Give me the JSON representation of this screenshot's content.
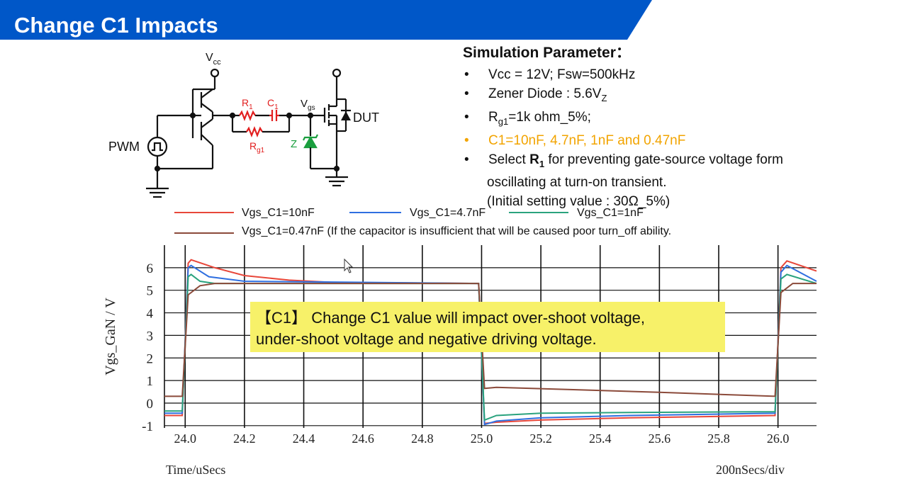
{
  "slide": {
    "title": "Change C1 Impacts"
  },
  "params": {
    "title": "Simulation Parameter",
    "colon": "：",
    "items": [
      "Vcc = 12V; Fsw=500kHz",
      "Zener Diode : 5.6V",
      "=1k ohm_5%;",
      "C1=10nF, 4.7nF, 1nF and 0.47nF",
      "Select",
      "for preventing gate-source voltage form",
      "oscillating at turn-on transient.",
      "(Initial setting value : 30Ω_5%)"
    ],
    "sub_z": "Z",
    "rg1_main": "R",
    "rg1_sub": "g1",
    "r1_main": "R",
    "r1_sub": "1"
  },
  "circuit": {
    "vcc_main": "V",
    "vcc_sub": "cc",
    "pwm": "PWM",
    "r1_main": "R",
    "r1_sub": "1",
    "c1_main": "C",
    "c1_sub": "1",
    "vgs_main": "V",
    "vgs_sub": "gs",
    "rg1_main": "R",
    "rg1_sub": "g1",
    "zener": "Z",
    "dut": "DUT"
  },
  "callout": {
    "line1": "【C1】 Change C1 value will impact over-shoot voltage,",
    "line2": "under-shoot voltage and negative driving voltage."
  },
  "colors": {
    "title_bar": "#0057c8",
    "c10": "#e8473a",
    "c47": "#2f6fe0",
    "c1": "#2aa37e",
    "c047": "#8b4a3a",
    "orange": "#f2a400",
    "red_component": "#e21e1e",
    "green_zener": "#1a9e3e"
  },
  "chart_data": {
    "type": "line",
    "ylabel": "Vgs_GaN / V",
    "xlabel": "Time/uSecs",
    "div_label": "200nSecs/div",
    "x_ticks": [
      "24.0",
      "24.2",
      "24.4",
      "24.6",
      "24.8",
      "25.0",
      "25.2",
      "25.4",
      "25.6",
      "25.8",
      "26.0"
    ],
    "y_ticks": [
      "-1",
      "0",
      "1",
      "2",
      "3",
      "4",
      "5",
      "6"
    ],
    "xlim": [
      23.93,
      26.13
    ],
    "ylim": [
      -1.1,
      7.0
    ],
    "legend": [
      {
        "name": "Vgs_C1=10nF",
        "key": "c10"
      },
      {
        "name": "Vgs_C1=4.7nF",
        "key": "c47"
      },
      {
        "name": "Vgs_C1=1nF",
        "key": "c1"
      },
      {
        "name": "Vgs_C1=0.47nF (If the capacitor is insufficient that will be caused poor turn_off ability.",
        "key": "c047"
      }
    ],
    "series": [
      {
        "name": "Vgs_C1=10nF",
        "key": "c10",
        "points": [
          [
            23.93,
            -0.55
          ],
          [
            23.99,
            -0.55
          ],
          [
            24.01,
            6.2
          ],
          [
            24.02,
            6.35
          ],
          [
            24.1,
            6.0
          ],
          [
            24.2,
            5.65
          ],
          [
            24.35,
            5.45
          ],
          [
            24.5,
            5.35
          ],
          [
            24.99,
            5.3
          ],
          [
            25.01,
            -0.9
          ],
          [
            25.05,
            -0.85
          ],
          [
            25.2,
            -0.75
          ],
          [
            25.5,
            -0.65
          ],
          [
            25.99,
            -0.55
          ],
          [
            26.01,
            6.0
          ],
          [
            26.03,
            6.3
          ],
          [
            26.13,
            5.85
          ]
        ]
      },
      {
        "name": "Vgs_C1=4.7nF",
        "key": "c47",
        "points": [
          [
            23.93,
            -0.45
          ],
          [
            23.99,
            -0.45
          ],
          [
            24.01,
            6.0
          ],
          [
            24.02,
            6.1
          ],
          [
            24.08,
            5.6
          ],
          [
            24.2,
            5.4
          ],
          [
            24.99,
            5.3
          ],
          [
            25.01,
            -0.95
          ],
          [
            25.05,
            -0.8
          ],
          [
            25.2,
            -0.65
          ],
          [
            25.5,
            -0.55
          ],
          [
            25.99,
            -0.45
          ],
          [
            26.01,
            5.8
          ],
          [
            26.03,
            6.1
          ],
          [
            26.13,
            5.4
          ]
        ]
      },
      {
        "name": "Vgs_C1=1nF",
        "key": "c1",
        "points": [
          [
            23.93,
            -0.35
          ],
          [
            23.99,
            -0.35
          ],
          [
            24.01,
            5.6
          ],
          [
            24.02,
            5.7
          ],
          [
            24.05,
            5.4
          ],
          [
            24.1,
            5.3
          ],
          [
            24.99,
            5.3
          ],
          [
            25.01,
            -0.75
          ],
          [
            25.05,
            -0.55
          ],
          [
            25.2,
            -0.45
          ],
          [
            25.5,
            -0.42
          ],
          [
            25.99,
            -0.38
          ],
          [
            26.01,
            5.5
          ],
          [
            26.03,
            5.7
          ],
          [
            26.13,
            5.3
          ]
        ]
      },
      {
        "name": "Vgs_C1=0.47nF",
        "key": "c047",
        "points": [
          [
            23.93,
            0.3
          ],
          [
            23.99,
            0.3
          ],
          [
            24.01,
            4.8
          ],
          [
            24.05,
            5.2
          ],
          [
            24.1,
            5.3
          ],
          [
            24.99,
            5.3
          ],
          [
            25.01,
            0.65
          ],
          [
            25.05,
            0.7
          ],
          [
            25.3,
            0.6
          ],
          [
            25.6,
            0.48
          ],
          [
            25.99,
            0.3
          ],
          [
            26.01,
            4.9
          ],
          [
            26.05,
            5.3
          ],
          [
            26.13,
            5.3
          ]
        ]
      }
    ]
  }
}
